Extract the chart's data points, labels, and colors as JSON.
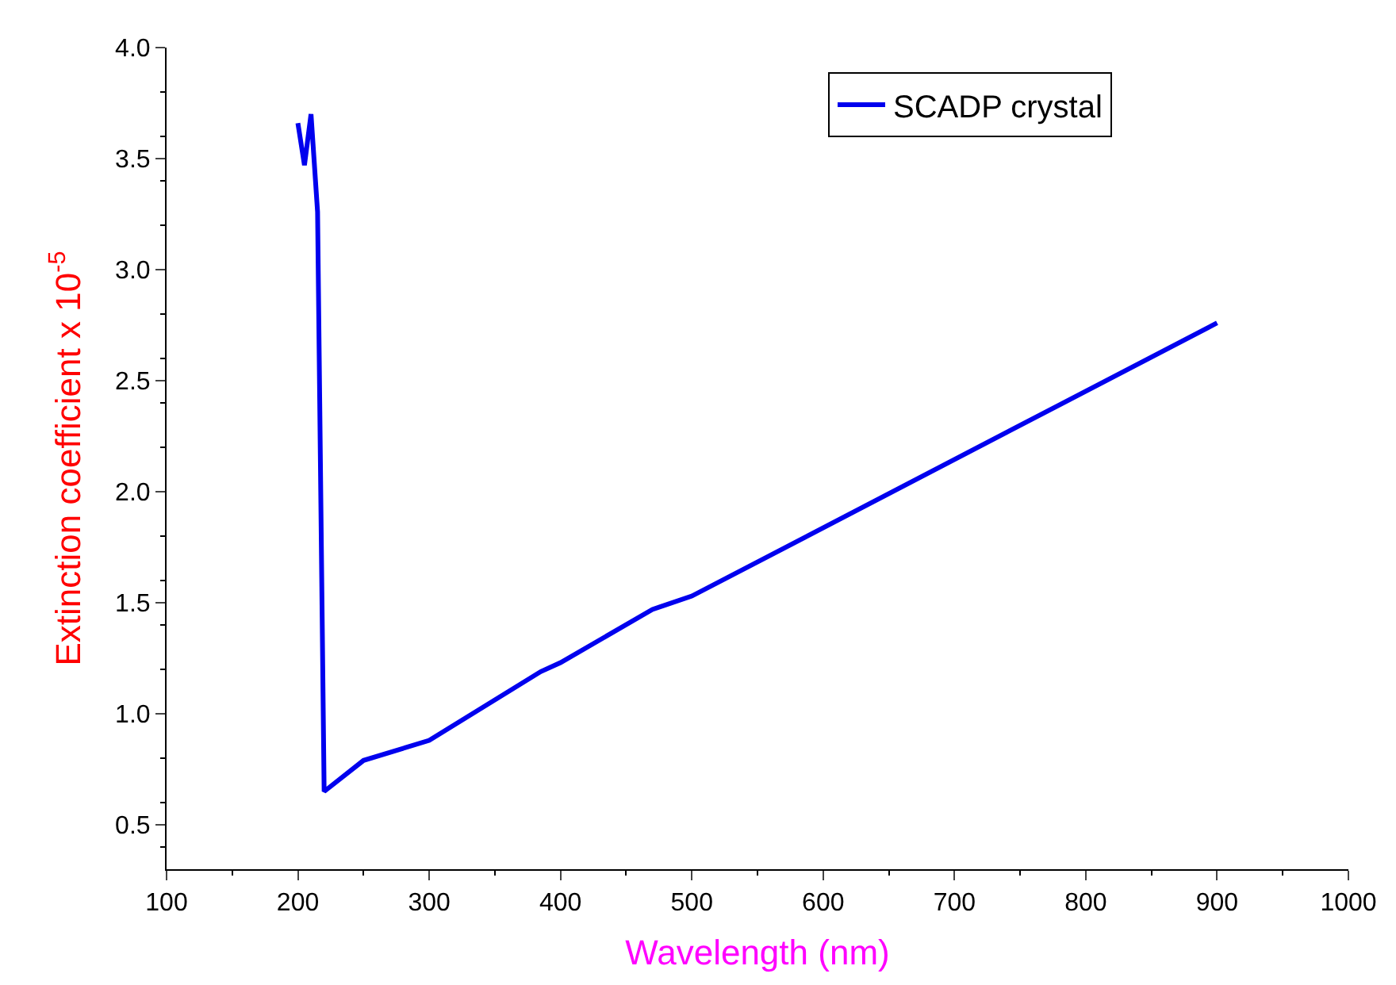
{
  "chart_data": {
    "type": "line",
    "xlabel": "Wavelength (nm)",
    "ylabel": "Extinction coefficient x 10$^{-5}$",
    "x": [
      200,
      205,
      210,
      215,
      220,
      250,
      300,
      385,
      400,
      470,
      500,
      900
    ],
    "series": [
      {
        "name": "SCADP crystal",
        "color": "#0000ee",
        "values": [
          3.66,
          3.47,
          3.7,
          3.26,
          0.65,
          0.79,
          0.88,
          1.19,
          1.23,
          1.47,
          1.53,
          2.76
        ]
      }
    ],
    "xlim": [
      100,
      1000
    ],
    "xticks": [
      100,
      200,
      300,
      400,
      500,
      600,
      700,
      800,
      900,
      1000
    ],
    "ylim": [
      0.3,
      4.0
    ],
    "yticks": [
      0.5,
      {
        "value": 1,
        "label": "1.0"
      },
      1.5,
      {
        "value": 2,
        "label": "2.0"
      },
      2.5,
      {
        "value": 3,
        "label": "3.0"
      },
      3.5,
      {
        "value": 4,
        "label": "4.0"
      }
    ],
    "legend": "top right",
    "marker": "none",
    "line_style": "solid"
  }
}
